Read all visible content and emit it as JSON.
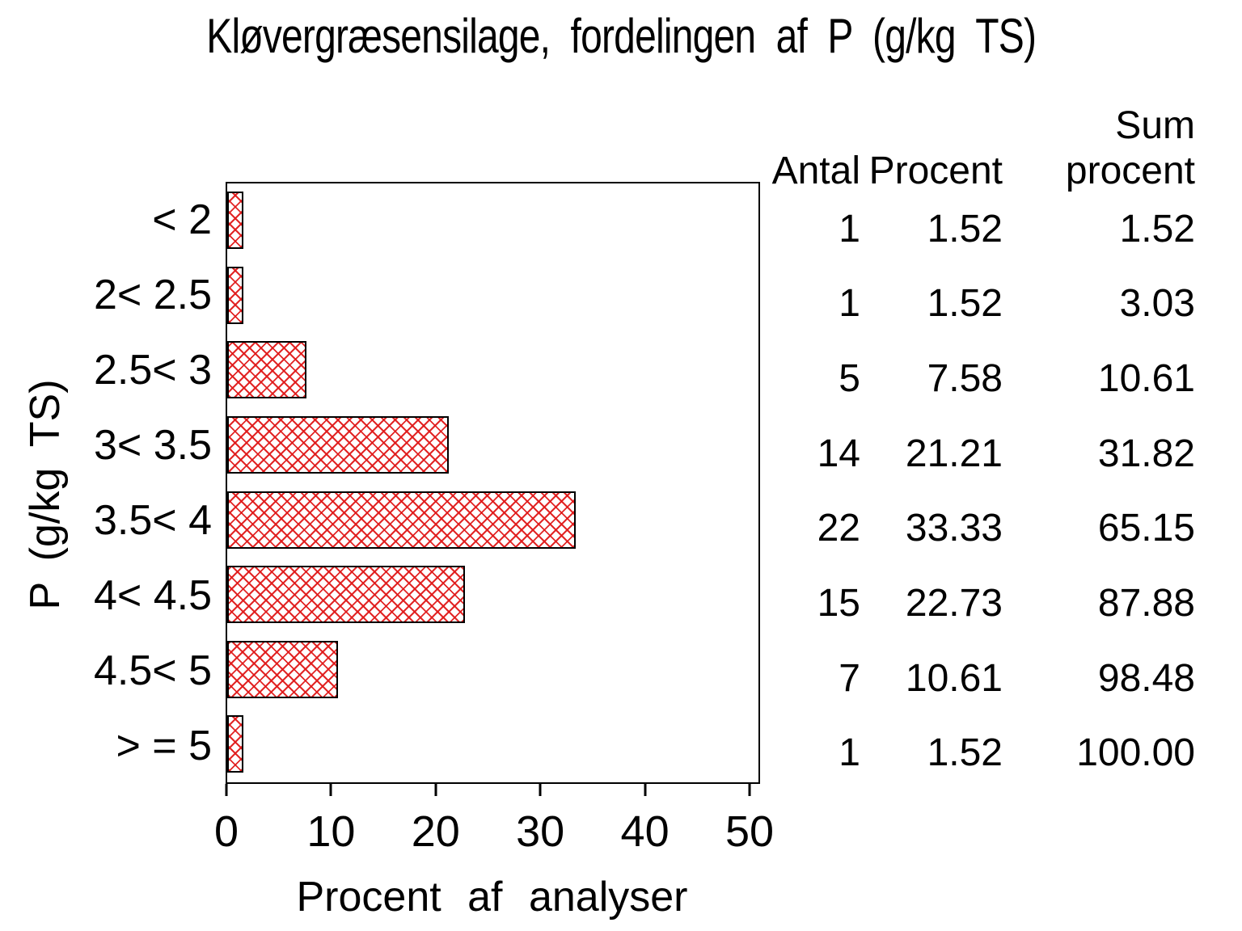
{
  "title": "Kløvergræsensilage, fordelingen af P (g/kg TS)",
  "y_axis": {
    "label": "P (g/kg TS)",
    "categories": [
      "< 2",
      "2< 2.5",
      "2.5< 3",
      "3< 3.5",
      "3.5< 4",
      "4< 4.5",
      "4.5< 5",
      "> = 5"
    ]
  },
  "x_axis": {
    "label": "Procent af analyser",
    "ticks": [
      0,
      10,
      20,
      30,
      40,
      50
    ],
    "tick_labels": [
      "0",
      "10",
      "20",
      "30",
      "40",
      "50"
    ],
    "max": 50
  },
  "table": {
    "headers": {
      "antal": "Antal",
      "procent": "Procent",
      "sum_line1": "Sum",
      "sum_line2": "procent"
    },
    "rows": [
      {
        "antal": "1",
        "procent": "1.52",
        "sum": "1.52"
      },
      {
        "antal": "1",
        "procent": "1.52",
        "sum": "3.03"
      },
      {
        "antal": "5",
        "procent": "7.58",
        "sum": "10.61"
      },
      {
        "antal": "14",
        "procent": "21.21",
        "sum": "31.82"
      },
      {
        "antal": "22",
        "procent": "33.33",
        "sum": "65.15"
      },
      {
        "antal": "15",
        "procent": "22.73",
        "sum": "87.88"
      },
      {
        "antal": "7",
        "procent": "10.61",
        "sum": "98.48"
      },
      {
        "antal": "1",
        "procent": "1.52",
        "sum": "100.00"
      }
    ]
  },
  "colors": {
    "bar_hatch": "#e01a1a",
    "bar_border": "#000000",
    "text": "#000000",
    "background": "#ffffff"
  },
  "chart_data": {
    "type": "bar",
    "orientation": "horizontal",
    "title": "Kløvergræsensilage, fordelingen af P (g/kg TS)",
    "categories": [
      "< 2",
      "2< 2.5",
      "2.5< 3",
      "3< 3.5",
      "3.5< 4",
      "4< 4.5",
      "4.5< 5",
      "> = 5"
    ],
    "values": [
      1.52,
      1.52,
      7.58,
      21.21,
      33.33,
      22.73,
      10.61,
      1.52
    ],
    "counts": [
      1,
      1,
      5,
      14,
      22,
      15,
      7,
      1
    ],
    "cum_percent": [
      1.52,
      3.03,
      10.61,
      31.82,
      65.15,
      87.88,
      98.48,
      100.0
    ],
    "xlabel": "Procent af analyser",
    "ylabel": "P (g/kg TS)",
    "xlim": [
      0,
      50
    ],
    "xticks": [
      0,
      10,
      20,
      30,
      40,
      50
    ],
    "grid": false,
    "legend": null,
    "bar_style": "red diagonal crosshatch, black outline"
  }
}
